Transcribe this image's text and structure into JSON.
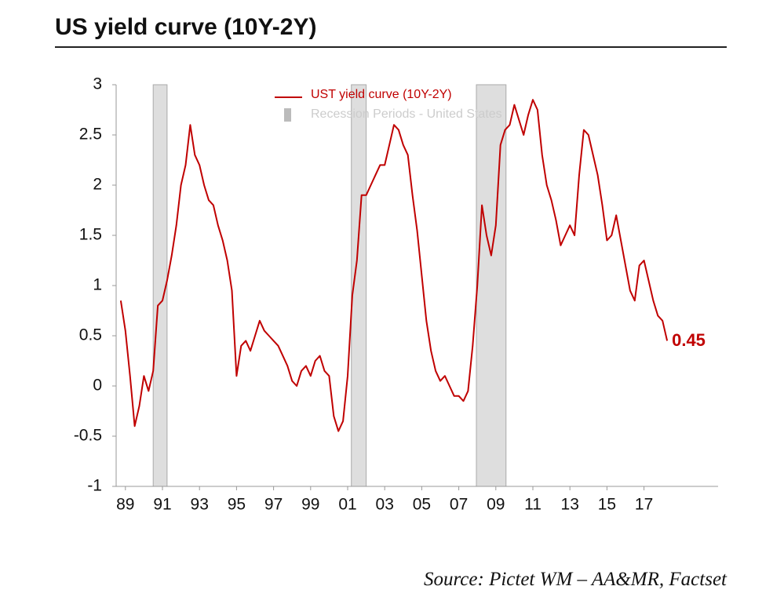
{
  "chart_data": {
    "type": "line",
    "title": "US yield curve (10Y-2Y)",
    "source": "Source: Pictet WM – AA&MR, Factset",
    "annotation": "0.45",
    "x": [
      1988.75,
      1989,
      1989.25,
      1989.5,
      1989.75,
      1990,
      1990.25,
      1990.5,
      1990.75,
      1991,
      1991.25,
      1991.5,
      1991.75,
      1992,
      1992.25,
      1992.5,
      1992.75,
      1993,
      1993.25,
      1993.5,
      1993.75,
      1994,
      1994.25,
      1994.5,
      1994.75,
      1995,
      1995.25,
      1995.5,
      1995.75,
      1996,
      1996.25,
      1996.5,
      1996.75,
      1997,
      1997.25,
      1997.5,
      1997.75,
      1998,
      1998.25,
      1998.5,
      1998.75,
      1999,
      1999.25,
      1999.5,
      1999.75,
      2000,
      2000.25,
      2000.5,
      2000.75,
      2001,
      2001.25,
      2001.5,
      2001.75,
      2002,
      2002.25,
      2002.5,
      2002.75,
      2003,
      2003.25,
      2003.5,
      2003.75,
      2004,
      2004.25,
      2004.5,
      2004.75,
      2005,
      2005.25,
      2005.5,
      2005.75,
      2006,
      2006.25,
      2006.5,
      2006.75,
      2007,
      2007.25,
      2007.5,
      2007.75,
      2008,
      2008.25,
      2008.5,
      2008.75,
      2009,
      2009.25,
      2009.5,
      2009.75,
      2010,
      2010.25,
      2010.5,
      2010.75,
      2011,
      2011.25,
      2011.5,
      2011.75,
      2012,
      2012.25,
      2012.5,
      2012.75,
      2013,
      2013.25,
      2013.5,
      2013.75,
      2014,
      2014.25,
      2014.5,
      2014.75,
      2015,
      2015.25,
      2015.5,
      2015.75,
      2016,
      2016.25,
      2016.5,
      2016.75,
      2017,
      2017.25,
      2017.5,
      2017.75,
      2018,
      2018.25
    ],
    "series": [
      {
        "name": "UST yield curve (10Y-2Y)",
        "color": "#c00000",
        "values": [
          0.85,
          0.55,
          0.1,
          -0.4,
          -0.2,
          0.1,
          -0.05,
          0.15,
          0.8,
          0.85,
          1.05,
          1.3,
          1.6,
          2.0,
          2.2,
          2.6,
          2.3,
          2.2,
          2.0,
          1.85,
          1.8,
          1.6,
          1.45,
          1.25,
          0.95,
          0.1,
          0.4,
          0.45,
          0.35,
          0.5,
          0.65,
          0.55,
          0.5,
          0.45,
          0.4,
          0.3,
          0.2,
          0.05,
          0.0,
          0.15,
          0.2,
          0.1,
          0.25,
          0.3,
          0.15,
          0.1,
          -0.3,
          -0.45,
          -0.35,
          0.1,
          0.9,
          1.25,
          1.9,
          1.9,
          2.0,
          2.1,
          2.2,
          2.2,
          2.4,
          2.6,
          2.55,
          2.4,
          2.3,
          1.9,
          1.55,
          1.1,
          0.65,
          0.35,
          0.15,
          0.05,
          0.1,
          0.0,
          -0.1,
          -0.1,
          -0.15,
          -0.05,
          0.4,
          1.0,
          1.8,
          1.5,
          1.3,
          1.6,
          2.4,
          2.55,
          2.6,
          2.8,
          2.65,
          2.5,
          2.7,
          2.85,
          2.75,
          2.3,
          2.0,
          1.85,
          1.65,
          1.4,
          1.5,
          1.6,
          1.5,
          2.1,
          2.55,
          2.5,
          2.3,
          2.1,
          1.8,
          1.45,
          1.5,
          1.7,
          1.45,
          1.2,
          0.95,
          0.85,
          1.2,
          1.25,
          1.05,
          0.85,
          0.7,
          0.65,
          0.45
        ]
      }
    ],
    "recessions": {
      "name": "Recession Periods - United States",
      "color": "#dedede",
      "periods": [
        [
          1990.5,
          1991.25
        ],
        [
          2001.2,
          2002.0
        ],
        [
          2007.95,
          2009.55
        ]
      ]
    },
    "xlim": [
      1988.5,
      2021
    ],
    "xticks": [
      {
        "value": 1989,
        "label": "89"
      },
      {
        "value": 1991,
        "label": "91"
      },
      {
        "value": 1993,
        "label": "93"
      },
      {
        "value": 1995,
        "label": "95"
      },
      {
        "value": 1997,
        "label": "97"
      },
      {
        "value": 1999,
        "label": "99"
      },
      {
        "value": 2001,
        "label": "01"
      },
      {
        "value": 2003,
        "label": "03"
      },
      {
        "value": 2005,
        "label": "05"
      },
      {
        "value": 2007,
        "label": "07"
      },
      {
        "value": 2009,
        "label": "09"
      },
      {
        "value": 2011,
        "label": "11"
      },
      {
        "value": 2013,
        "label": "13"
      },
      {
        "value": 2015,
        "label": "15"
      },
      {
        "value": 2017,
        "label": "17"
      }
    ],
    "ylim": [
      -1,
      3
    ],
    "yticks": [
      -1,
      -0.5,
      0,
      0.5,
      1,
      1.5,
      2,
      2.5,
      3
    ]
  }
}
